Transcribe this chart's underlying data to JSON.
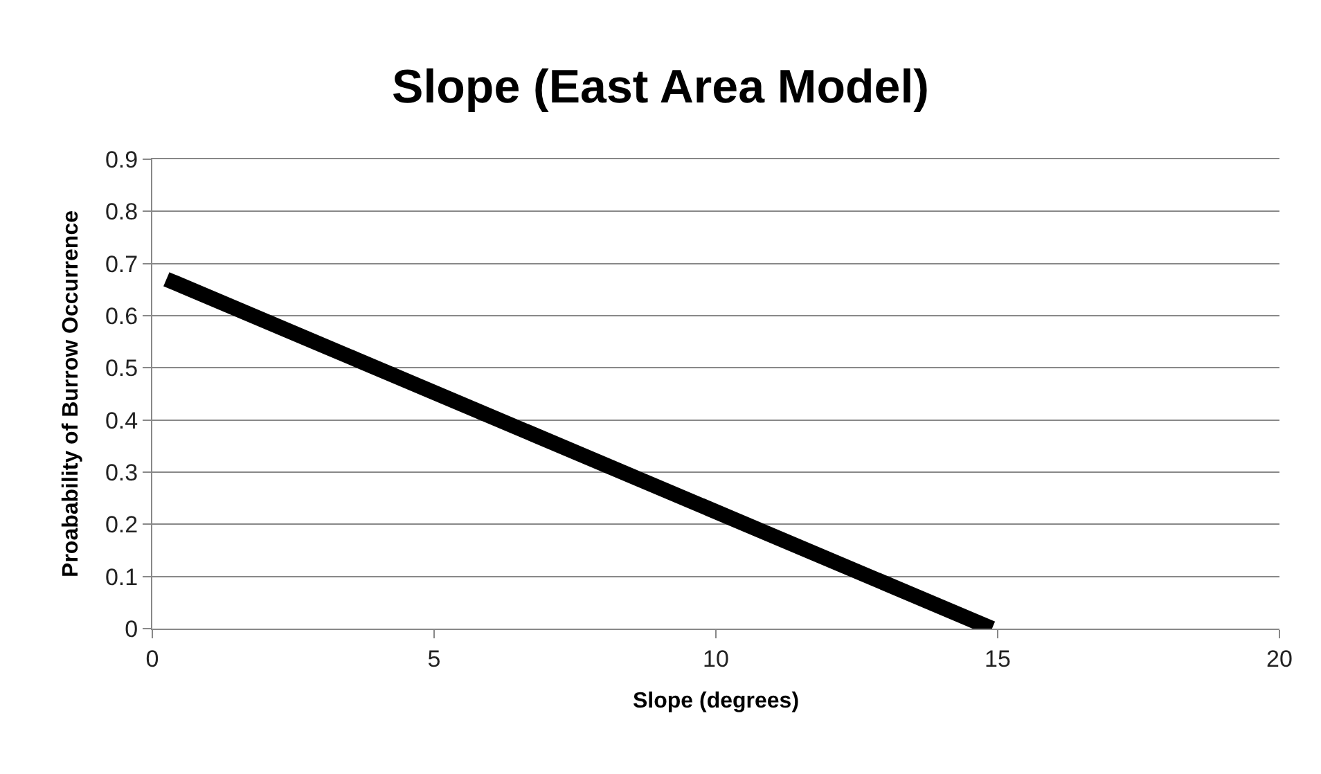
{
  "chart_data": {
    "type": "line",
    "title": "Slope (East Area Model)",
    "xlabel": "Slope (degrees)",
    "ylabel": "Proabability of Burrow Occurrence",
    "x": [
      0.25,
      14.9
    ],
    "series": [
      {
        "color": "#000000",
        "values": [
          0.67,
          0
        ]
      }
    ],
    "xlim": [
      0,
      20
    ],
    "xticks": [
      0,
      5,
      10,
      15,
      20
    ],
    "ylim": [
      0,
      0.9
    ],
    "yticks": [
      0,
      0.1,
      0.2,
      0.3,
      0.4,
      0.5,
      0.6,
      0.7,
      0.8,
      0.9
    ],
    "grid": "y",
    "marker": "none",
    "line_style": "solid"
  }
}
